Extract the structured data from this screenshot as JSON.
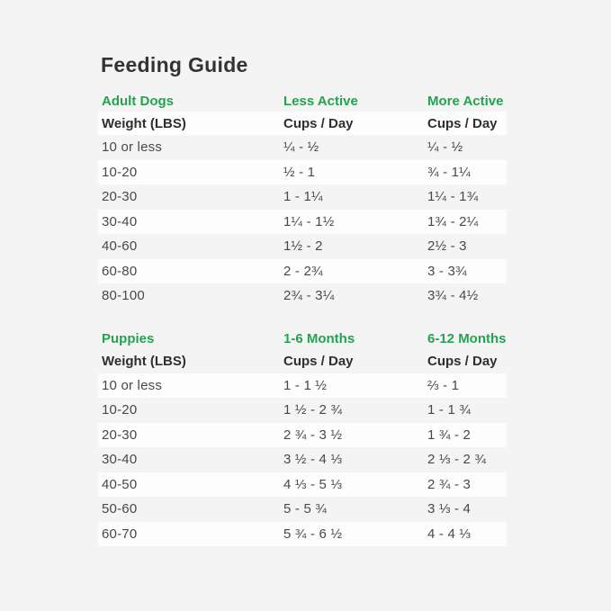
{
  "page": {
    "title": "Feeding Guide"
  },
  "colors": {
    "accent_green": "#23a351",
    "page_background": "#f4f4f4",
    "row_stripe_white": "#fdfdfd",
    "title_text": "#333333",
    "body_text": "#484848"
  },
  "chart_data": [
    {
      "type": "table",
      "section": "Adult Dogs",
      "group_headers": [
        "Adult Dogs",
        "Less Active",
        "More Active"
      ],
      "columns": [
        "Weight (LBS)",
        "Cups / Day",
        "Cups / Day"
      ],
      "rows": [
        [
          "10 or less",
          "¼ - ½",
          "¼ - ½"
        ],
        [
          "10-20",
          "½ - 1",
          "¾ - 1¼"
        ],
        [
          "20-30",
          "1 - 1¼",
          "1¼ - 1¾"
        ],
        [
          "30-40",
          "1¼ - 1½",
          "1¾ - 2¼"
        ],
        [
          "40-60",
          "1½ - 2",
          "2½ - 3"
        ],
        [
          "60-80",
          "2 - 2¾",
          "3 - 3¾"
        ],
        [
          "80-100",
          "2¾ - 3¼",
          "3¾ - 4½"
        ]
      ]
    },
    {
      "type": "table",
      "section": "Puppies",
      "group_headers": [
        "Puppies",
        "1-6 Months",
        "6-12 Months"
      ],
      "columns": [
        "Weight (LBS)",
        "Cups / Day",
        "Cups / Day"
      ],
      "rows": [
        [
          "10 or less",
          "1 - 1 ½",
          "⅔ - 1"
        ],
        [
          "10-20",
          "1 ½ - 2 ¾",
          "1 - 1 ¾"
        ],
        [
          "20-30",
          "2 ¾ - 3 ½",
          "1 ¾ - 2"
        ],
        [
          "30-40",
          "3 ½ - 4 ⅓",
          "2 ⅓ - 2 ¾"
        ],
        [
          "40-50",
          "4 ⅓ - 5 ⅓",
          "2 ¾ - 3"
        ],
        [
          "50-60",
          "5 - 5 ¾",
          "3 ⅓ - 4"
        ],
        [
          "60-70",
          "5 ¾ - 6 ½",
          "4 - 4 ⅓"
        ]
      ]
    }
  ]
}
